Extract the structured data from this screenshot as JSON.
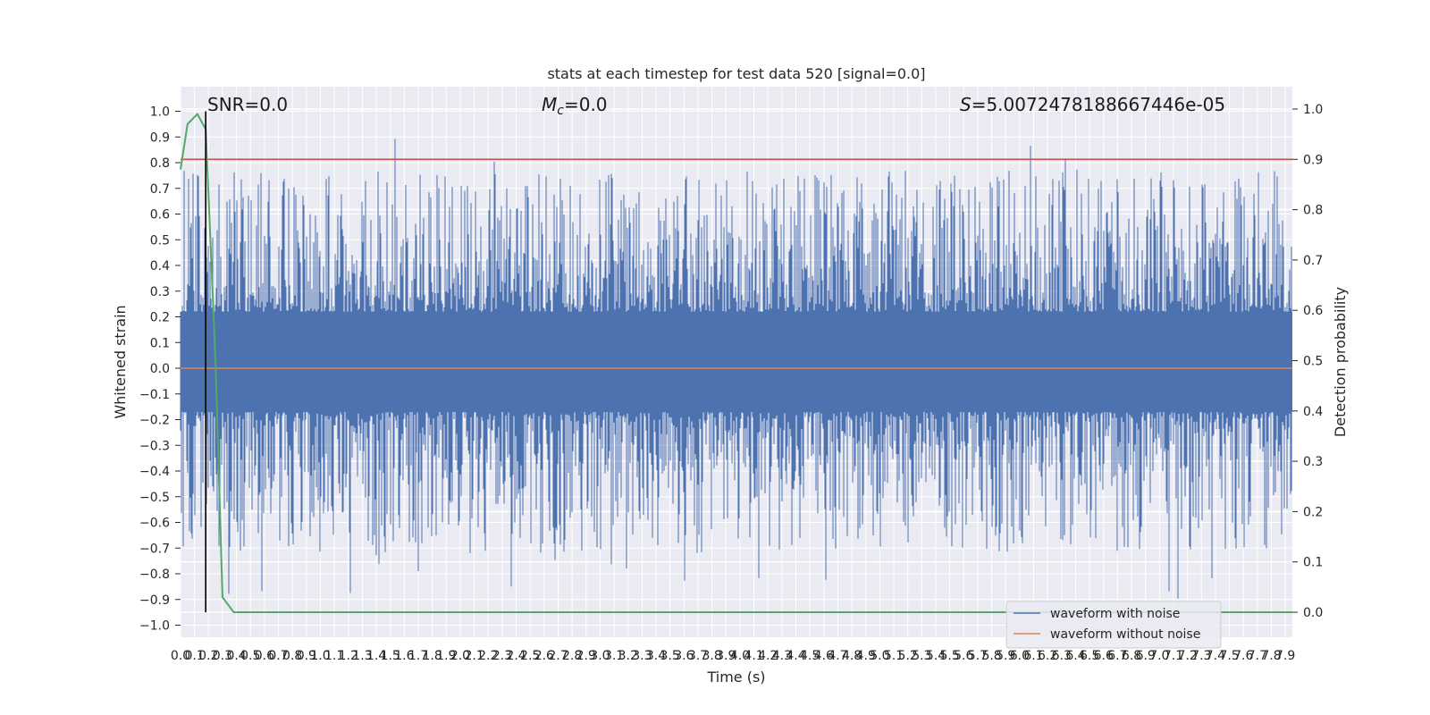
{
  "chart_data": {
    "type": "line",
    "title": "stats at each timestep for test data 520 [signal=0.0]",
    "xlabel": "Time (s)",
    "ylabel": "Whitened strain",
    "ylabel_right": "Detection probability",
    "xlim": [
      0.0,
      7.95
    ],
    "ylim": [
      -1.05,
      1.05
    ],
    "ylim_right": [
      -0.05,
      1.05
    ],
    "grid": true,
    "legend_placement": "lower-right",
    "annotations": {
      "snr": "SNR=0.0",
      "mc_symbol": "M",
      "mc_sub": "c",
      "mc_value": "=0.0",
      "s_symbol": "S",
      "s_value": "=5.0072478188667446e-05"
    },
    "x_ticks": [
      "0.0",
      "0.1",
      "0.2",
      "0.3",
      "0.4",
      "0.5",
      "0.6",
      "0.7",
      "0.8",
      "0.9",
      "1.0",
      "1.1",
      "1.2",
      "1.3",
      "1.4",
      "1.5",
      "1.6",
      "1.7",
      "1.8",
      "1.9",
      "2.0",
      "2.1",
      "2.2",
      "2.3",
      "2.4",
      "2.5",
      "2.6",
      "2.7",
      "2.8",
      "2.9",
      "3.0",
      "3.1",
      "3.2",
      "3.3",
      "3.4",
      "3.5",
      "3.6",
      "3.7",
      "3.8",
      "3.9",
      "4.0",
      "4.1",
      "4.2",
      "4.3",
      "4.4",
      "4.5",
      "4.6",
      "4.7",
      "4.8",
      "4.9",
      "5.0",
      "5.1",
      "5.2",
      "5.3",
      "5.4",
      "5.5",
      "5.6",
      "5.7",
      "5.8",
      "5.9",
      "6.0",
      "6.1",
      "6.2",
      "6.3",
      "6.4",
      "6.5",
      "6.6",
      "6.7",
      "6.8",
      "6.9",
      "7.0",
      "7.1",
      "7.2",
      "7.3",
      "7.4",
      "7.5",
      "7.6",
      "7.7",
      "7.8",
      "7.9"
    ],
    "y_ticks_left": [
      "1.0",
      "0.9",
      "0.8",
      "0.7",
      "0.6",
      "0.5",
      "0.4",
      "0.3",
      "0.2",
      "0.1",
      "0.0",
      "−0.1",
      "−0.2",
      "−0.3",
      "−0.4",
      "−0.5",
      "−0.6",
      "−0.7",
      "−0.8",
      "−0.9",
      "−1.0"
    ],
    "y_ticks_right": [
      "1.0",
      "0.9",
      "0.8",
      "0.7",
      "0.6",
      "0.5",
      "0.4",
      "0.3",
      "0.2",
      "0.1",
      "0.0"
    ],
    "series": [
      {
        "name": "waveform with noise",
        "color": "#4c72b0",
        "axis": "left",
        "kind": "noise",
        "band": [
          -0.17,
          0.22
        ],
        "envelope": [
          -0.95,
          1.0
        ]
      },
      {
        "name": "waveform without noise",
        "color": "#dd8452",
        "axis": "left",
        "x": [
          0.0,
          7.95
        ],
        "y": [
          0.0,
          0.0
        ]
      },
      {
        "name": "",
        "color": "#55a868",
        "axis": "right",
        "x": [
          0.0,
          0.05,
          0.12,
          0.18,
          0.25,
          0.3,
          0.38,
          0.45,
          7.95
        ],
        "y": [
          0.88,
          0.97,
          0.99,
          0.96,
          0.5,
          0.03,
          0.0,
          0.0,
          0.0
        ]
      }
    ],
    "threshold": {
      "axis": "right",
      "value": 0.9,
      "color": "#c44e52"
    },
    "marker_line": {
      "x": 0.18,
      "color": "#000000"
    }
  }
}
